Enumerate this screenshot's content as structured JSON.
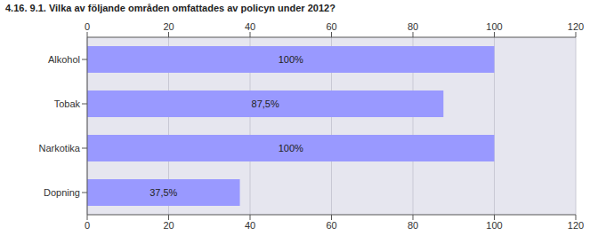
{
  "chart_data": {
    "type": "bar",
    "title": "4.16. 9.1. Vilka av följande områden omfattades av policyn under 2012?",
    "orientation": "horizontal",
    "categories": [
      "Alkohol",
      "Tobak",
      "Narkotika",
      "Dopning"
    ],
    "values": [
      100,
      87.5,
      100,
      37.5
    ],
    "value_labels": [
      "100%",
      "87,5%",
      "100%",
      "37,5%"
    ],
    "data_labels": true,
    "color": "#9999ff",
    "xlim": [
      0,
      120
    ],
    "xticks": [
      0,
      20,
      40,
      60,
      80,
      100,
      120
    ],
    "grid": true
  }
}
